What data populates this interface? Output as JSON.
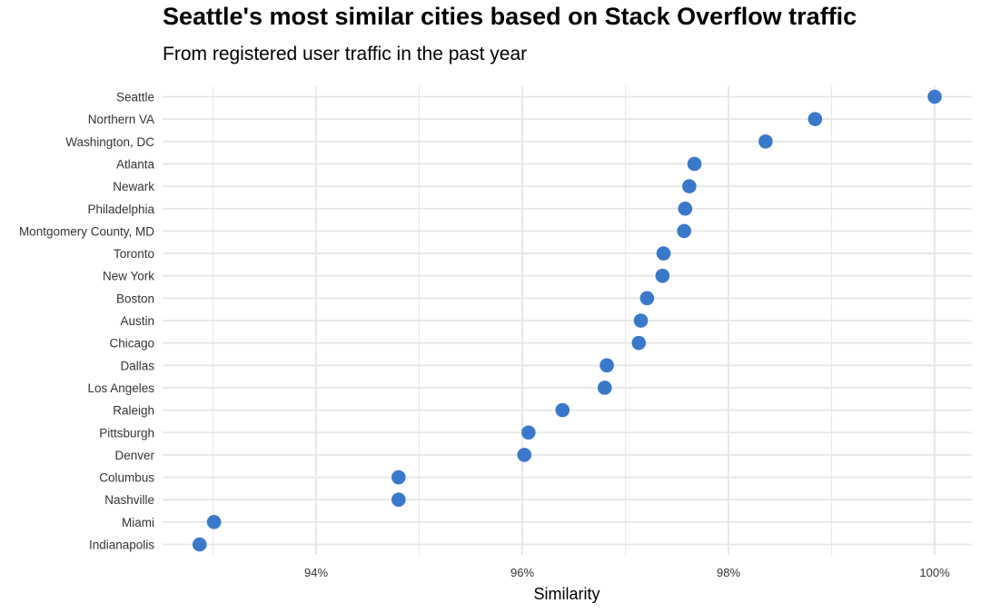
{
  "title": "Seattle's most similar cities based on Stack Overflow traffic",
  "subtitle": "From registered user traffic in the past year",
  "colors": {
    "point": "#3a78c9",
    "grid": "#e6e6e6",
    "background": "#ffffff"
  },
  "chart_data": {
    "type": "scatter",
    "title": "Seattle's most similar cities based on Stack Overflow traffic",
    "subtitle": "From registered user traffic in the past year",
    "xlabel": "Similarity",
    "ylabel": "",
    "x_ticks": [
      0.94,
      0.96,
      0.98,
      1.0
    ],
    "x_tick_labels": [
      "94%",
      "96%",
      "98%",
      "100%"
    ],
    "xlim": [
      0.9275,
      1.0035
    ],
    "grid": true,
    "legend": "none",
    "categories": [
      "Seattle",
      "Northern VA",
      "Washington, DC",
      "Atlanta",
      "Newark",
      "Philadelphia",
      "Montgomery County, MD",
      "Toronto",
      "New York",
      "Boston",
      "Austin",
      "Chicago",
      "Dallas",
      "Los Angeles",
      "Raleigh",
      "Pittsburgh",
      "Denver",
      "Columbus",
      "Nashville",
      "Miami",
      "Indianapolis"
    ],
    "values": [
      1.0,
      0.9884,
      0.9836,
      0.9767,
      0.9762,
      0.9758,
      0.9757,
      0.9737,
      0.9736,
      0.9721,
      0.9715,
      0.9713,
      0.9682,
      0.968,
      0.9639,
      0.9606,
      0.9602,
      0.948,
      0.948,
      0.9301,
      0.9287
    ]
  }
}
